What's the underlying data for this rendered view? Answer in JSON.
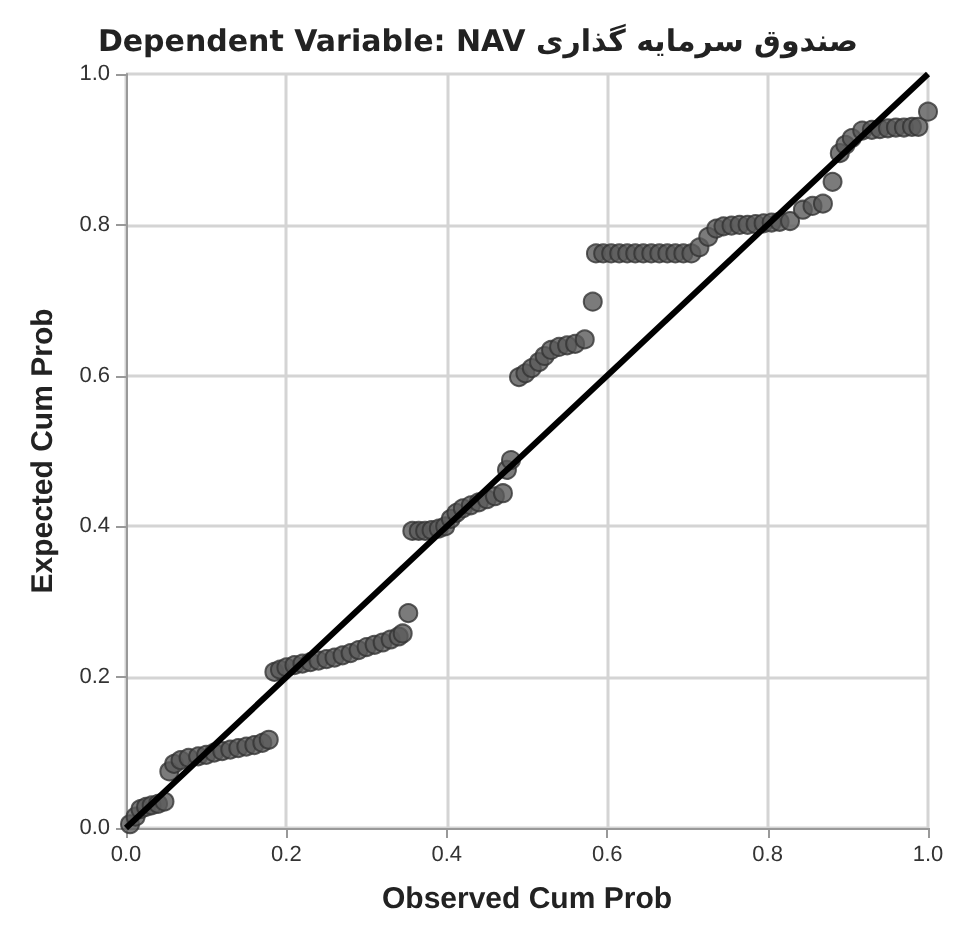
{
  "chart_data": {
    "type": "scatter",
    "title": "Dependent Variable: NAV صندوق سرمایه گذاری",
    "xlabel": "Observed Cum Prob",
    "ylabel": "Expected Cum Prob",
    "xlim": [
      0,
      1
    ],
    "ylim": [
      0,
      1
    ],
    "xticks": [
      {
        "value": 0,
        "label": "0.0"
      },
      0.2,
      0.4,
      0.6,
      0.8,
      {
        "value": 1,
        "label": "1.0"
      }
    ],
    "yticks": [
      {
        "value": 0,
        "label": "0.0"
      },
      0.2,
      0.4,
      0.6,
      0.8,
      {
        "value": 1,
        "label": "1.0"
      }
    ],
    "grid": true,
    "marker": "circle",
    "series": [
      {
        "color": "#5a5a5a",
        "x": [
          0.005,
          0.012,
          0.018,
          0.025,
          0.032,
          0.04,
          0.048,
          0.054,
          0.06,
          0.068,
          0.078,
          0.09,
          0.1,
          0.11,
          0.12,
          0.13,
          0.14,
          0.15,
          0.16,
          0.17,
          0.178,
          0.185,
          0.192,
          0.2,
          0.21,
          0.22,
          0.23,
          0.24,
          0.25,
          0.26,
          0.27,
          0.28,
          0.29,
          0.3,
          0.31,
          0.32,
          0.33,
          0.34,
          0.345,
          0.352,
          0.357,
          0.365,
          0.373,
          0.381,
          0.39,
          0.398,
          0.405,
          0.412,
          0.42,
          0.43,
          0.44,
          0.45,
          0.46,
          0.47,
          0.475,
          0.48,
          0.49,
          0.498,
          0.506,
          0.515,
          0.522,
          0.53,
          0.54,
          0.55,
          0.56,
          0.572,
          0.582,
          0.586,
          0.595,
          0.605,
          0.615,
          0.625,
          0.635,
          0.645,
          0.655,
          0.665,
          0.675,
          0.685,
          0.695,
          0.705,
          0.715,
          0.726,
          0.736,
          0.745,
          0.755,
          0.765,
          0.775,
          0.785,
          0.795,
          0.805,
          0.815,
          0.828,
          0.844,
          0.856,
          0.869,
          0.881,
          0.89,
          0.897,
          0.905,
          0.918,
          0.93,
          0.94,
          0.95,
          0.96,
          0.97,
          0.98,
          0.988,
          1.0
        ],
        "values": [
          0.005,
          0.015,
          0.025,
          0.028,
          0.03,
          0.032,
          0.035,
          0.075,
          0.085,
          0.09,
          0.093,
          0.095,
          0.097,
          0.1,
          0.102,
          0.104,
          0.106,
          0.108,
          0.11,
          0.113,
          0.117,
          0.207,
          0.21,
          0.213,
          0.216,
          0.218,
          0.22,
          0.222,
          0.224,
          0.226,
          0.229,
          0.232,
          0.236,
          0.24,
          0.243,
          0.246,
          0.25,
          0.254,
          0.258,
          0.285,
          0.394,
          0.394,
          0.394,
          0.395,
          0.397,
          0.4,
          0.41,
          0.418,
          0.424,
          0.428,
          0.432,
          0.436,
          0.44,
          0.444,
          0.475,
          0.488,
          0.598,
          0.603,
          0.61,
          0.618,
          0.626,
          0.634,
          0.638,
          0.64,
          0.642,
          0.648,
          0.698,
          0.762,
          0.762,
          0.762,
          0.762,
          0.762,
          0.762,
          0.762,
          0.762,
          0.762,
          0.762,
          0.762,
          0.762,
          0.762,
          0.77,
          0.784,
          0.795,
          0.798,
          0.799,
          0.8,
          0.8,
          0.801,
          0.802,
          0.803,
          0.804,
          0.805,
          0.82,
          0.825,
          0.828,
          0.857,
          0.895,
          0.906,
          0.915,
          0.925,
          0.926,
          0.927,
          0.928,
          0.929,
          0.929,
          0.93,
          0.93,
          0.95
        ]
      },
      {
        "type": "line",
        "color": "#000000",
        "marker": "none",
        "x": [
          0,
          1
        ],
        "values": [
          0,
          1
        ]
      }
    ]
  }
}
